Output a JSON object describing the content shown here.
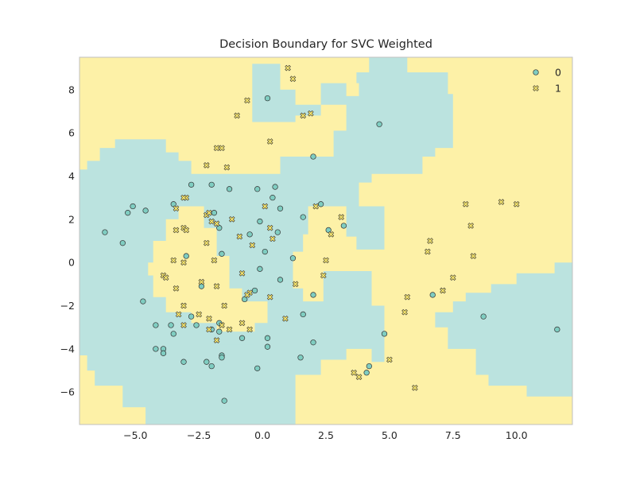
{
  "chart_data": {
    "type": "scatter",
    "title": "Decision Boundary for SVC Weighted",
    "xlabel": "",
    "ylabel": "",
    "xlim": [
      -7.2,
      12.2
    ],
    "ylim": [
      -7.5,
      9.5
    ],
    "x_ticks": [
      -5.0,
      -2.5,
      0.0,
      2.5,
      5.0,
      7.5,
      10.0
    ],
    "x_tick_labels": [
      "−5.0",
      "−2.5",
      "0.0",
      "2.5",
      "5.0",
      "7.5",
      "10.0"
    ],
    "y_ticks": [
      -6,
      -4,
      -2,
      0,
      2,
      4,
      6,
      8
    ],
    "y_tick_labels": [
      "−6",
      "−4",
      "−2",
      "0",
      "2",
      "4",
      "6",
      "8"
    ],
    "grid": false,
    "legend_position": "top-right",
    "colors": {
      "class0_region": "#bbe3df",
      "class1_region": "#fdf1a7",
      "class0_marker": "#7fcdc1",
      "class1_marker": "#f4e36a",
      "marker_edge": "#333333",
      "axes_edge": "#c0c0c0"
    },
    "series": [
      {
        "name": "0",
        "marker": "circle",
        "points": [
          [
            0.2,
            7.6
          ],
          [
            4.6,
            6.4
          ],
          [
            2.0,
            4.9
          ],
          [
            -2.8,
            3.6
          ],
          [
            -2.0,
            3.6
          ],
          [
            -1.3,
            3.4
          ],
          [
            -0.2,
            3.4
          ],
          [
            0.5,
            3.5
          ],
          [
            0.4,
            3.0
          ],
          [
            2.3,
            2.7
          ],
          [
            -3.5,
            2.7
          ],
          [
            -5.1,
            2.6
          ],
          [
            -4.6,
            2.4
          ],
          [
            -5.3,
            2.3
          ],
          [
            -1.9,
            2.3
          ],
          [
            0.7,
            2.5
          ],
          [
            1.6,
            2.1
          ],
          [
            -0.1,
            1.9
          ],
          [
            -6.2,
            1.4
          ],
          [
            -1.7,
            1.6
          ],
          [
            -0.5,
            1.3
          ],
          [
            0.6,
            1.4
          ],
          [
            2.6,
            1.5
          ],
          [
            3.2,
            1.7
          ],
          [
            -5.5,
            0.9
          ],
          [
            -1.6,
            0.4
          ],
          [
            0.1,
            0.5
          ],
          [
            -3.0,
            0.3
          ],
          [
            1.2,
            0.2
          ],
          [
            -0.1,
            -0.3
          ],
          [
            0.7,
            -0.8
          ],
          [
            -2.4,
            -1.1
          ],
          [
            -0.3,
            -1.3
          ],
          [
            -0.7,
            -1.7
          ],
          [
            -4.7,
            -1.8
          ],
          [
            2.0,
            -1.5
          ],
          [
            6.7,
            -1.5
          ],
          [
            1.6,
            -2.4
          ],
          [
            -2.8,
            -2.5
          ],
          [
            8.7,
            -2.5
          ],
          [
            -4.2,
            -2.9
          ],
          [
            -3.6,
            -2.9
          ],
          [
            -2.6,
            -2.9
          ],
          [
            -1.7,
            -2.8
          ],
          [
            -3.5,
            -3.3
          ],
          [
            -2.0,
            -3.1
          ],
          [
            -1.7,
            -3.2
          ],
          [
            11.6,
            -3.1
          ],
          [
            -0.8,
            -3.5
          ],
          [
            0.2,
            -3.5
          ],
          [
            4.8,
            -3.3
          ],
          [
            2.0,
            -3.7
          ],
          [
            -4.2,
            -4.0
          ],
          [
            -3.9,
            -4.0
          ],
          [
            -3.9,
            -4.2
          ],
          [
            0.2,
            -3.9
          ],
          [
            -1.6,
            -4.3
          ],
          [
            -1.6,
            -4.4
          ],
          [
            1.5,
            -4.4
          ],
          [
            -3.1,
            -4.6
          ],
          [
            -2.2,
            -4.6
          ],
          [
            -2.0,
            -4.8
          ],
          [
            4.2,
            -4.8
          ],
          [
            -0.2,
            -4.9
          ],
          [
            4.1,
            -5.1
          ],
          [
            -1.5,
            -6.4
          ]
        ]
      },
      {
        "name": "1",
        "marker": "x",
        "points": [
          [
            1.0,
            9.0
          ],
          [
            1.2,
            8.5
          ],
          [
            -0.6,
            7.5
          ],
          [
            -1.0,
            6.8
          ],
          [
            1.6,
            6.8
          ],
          [
            1.9,
            6.9
          ],
          [
            0.3,
            5.6
          ],
          [
            -1.6,
            5.3
          ],
          [
            -1.8,
            5.3
          ],
          [
            -2.2,
            4.5
          ],
          [
            -1.4,
            4.4
          ],
          [
            -3.0,
            3.0
          ],
          [
            -3.1,
            3.0
          ],
          [
            -3.4,
            2.5
          ],
          [
            0.1,
            2.6
          ],
          [
            2.1,
            2.6
          ],
          [
            -2.2,
            2.2
          ],
          [
            -2.1,
            2.3
          ],
          [
            -1.2,
            2.0
          ],
          [
            3.1,
            2.1
          ],
          [
            -2.0,
            1.9
          ],
          [
            -1.8,
            1.8
          ],
          [
            -3.1,
            1.6
          ],
          [
            -3.4,
            1.5
          ],
          [
            -3.0,
            1.5
          ],
          [
            0.3,
            1.6
          ],
          [
            -0.9,
            1.2
          ],
          [
            2.7,
            1.3
          ],
          [
            -2.2,
            0.9
          ],
          [
            -0.4,
            0.8
          ],
          [
            0.4,
            1.1
          ],
          [
            -3.5,
            0.1
          ],
          [
            -3.1,
            0.0
          ],
          [
            -1.9,
            0.1
          ],
          [
            2.5,
            0.1
          ],
          [
            -3.9,
            -0.6
          ],
          [
            -3.8,
            -0.7
          ],
          [
            -0.8,
            -0.5
          ],
          [
            2.4,
            -0.6
          ],
          [
            -3.4,
            -1.2
          ],
          [
            -2.4,
            -0.9
          ],
          [
            -1.8,
            -1.1
          ],
          [
            1.3,
            -1.0
          ],
          [
            -0.5,
            -1.4
          ],
          [
            -0.6,
            -1.5
          ],
          [
            0.3,
            -1.6
          ],
          [
            -3.1,
            -2.0
          ],
          [
            -1.5,
            -2.0
          ],
          [
            -3.3,
            -2.4
          ],
          [
            -2.5,
            -2.4
          ],
          [
            -2.1,
            -2.6
          ],
          [
            0.9,
            -2.6
          ],
          [
            -3.1,
            -2.9
          ],
          [
            -1.6,
            -2.9
          ],
          [
            -0.8,
            -2.8
          ],
          [
            -2.1,
            -3.1
          ],
          [
            -1.3,
            -3.1
          ],
          [
            -0.5,
            -3.1
          ],
          [
            -1.8,
            -3.6
          ],
          [
            8.0,
            2.7
          ],
          [
            9.4,
            2.8
          ],
          [
            10.0,
            2.7
          ],
          [
            8.2,
            1.7
          ],
          [
            6.6,
            1.0
          ],
          [
            6.5,
            0.5
          ],
          [
            8.3,
            0.3
          ],
          [
            7.5,
            -0.7
          ],
          [
            5.7,
            -1.6
          ],
          [
            7.1,
            -1.3
          ],
          [
            5.6,
            -2.3
          ],
          [
            5.0,
            -4.5
          ],
          [
            3.6,
            -5.1
          ],
          [
            3.8,
            -5.3
          ],
          [
            6.0,
            -5.8
          ]
        ]
      }
    ],
    "regions": {
      "note": "",
      "class0_polygons": [
        [
          [
            -0.4,
            9.2
          ],
          [
            0.7,
            9.2
          ],
          [
            0.7,
            8.0
          ],
          [
            1.3,
            8.0
          ],
          [
            1.3,
            7.3
          ],
          [
            2.3,
            7.3
          ],
          [
            2.3,
            8.3
          ],
          [
            3.7,
            8.3
          ],
          [
            3.7,
            8.8
          ],
          [
            4.2,
            8.8
          ],
          [
            4.2,
            9.5
          ],
          [
            5.7,
            9.5
          ],
          [
            5.7,
            8.8
          ],
          [
            7.3,
            8.8
          ],
          [
            7.3,
            7.8
          ],
          [
            7.5,
            7.8
          ],
          [
            7.5,
            5.3
          ],
          [
            6.8,
            5.3
          ],
          [
            6.8,
            4.9
          ],
          [
            6.3,
            4.9
          ],
          [
            6.3,
            4.1
          ],
          [
            4.3,
            4.1
          ],
          [
            4.3,
            3.7
          ],
          [
            3.8,
            3.7
          ],
          [
            3.8,
            2.6
          ],
          [
            4.8,
            2.6
          ],
          [
            4.8,
            0.6
          ],
          [
            4.3,
            0.6
          ],
          [
            4.3,
            0.6
          ],
          [
            3.7,
            0.6
          ],
          [
            3.7,
            1.2
          ],
          [
            3.3,
            1.2
          ],
          [
            3.3,
            2.6
          ],
          [
            1.8,
            2.6
          ],
          [
            1.8,
            1.3
          ],
          [
            1.6,
            1.3
          ],
          [
            1.6,
            0.5
          ],
          [
            1.2,
            0.5
          ],
          [
            1.2,
            -1.2
          ],
          [
            1.6,
            -1.2
          ],
          [
            1.6,
            -1.8
          ],
          [
            2.4,
            -1.8
          ],
          [
            2.4,
            -0.4
          ],
          [
            4.3,
            -0.4
          ],
          [
            4.3,
            -2.0
          ],
          [
            4.8,
            -2.0
          ],
          [
            4.8,
            -4.6
          ],
          [
            4.3,
            -4.6
          ],
          [
            4.3,
            -4.0
          ],
          [
            3.3,
            -4.0
          ],
          [
            3.3,
            -4.5
          ],
          [
            2.3,
            -4.5
          ],
          [
            2.3,
            -5.2
          ],
          [
            1.3,
            -5.2
          ],
          [
            1.3,
            -7.5
          ],
          [
            -4.6,
            -7.5
          ],
          [
            -4.6,
            -6.7
          ],
          [
            -5.5,
            -6.7
          ],
          [
            -5.5,
            -5.7
          ],
          [
            -6.6,
            -5.7
          ],
          [
            -6.6,
            -5.0
          ],
          [
            -6.9,
            -5.0
          ],
          [
            -6.9,
            -4.3
          ],
          [
            -7.2,
            -4.3
          ],
          [
            -7.2,
            4.3
          ],
          [
            -6.9,
            4.3
          ],
          [
            -6.9,
            4.7
          ],
          [
            -6.4,
            4.7
          ],
          [
            -6.4,
            5.3
          ],
          [
            -5.8,
            5.3
          ],
          [
            -5.8,
            5.7
          ],
          [
            -3.8,
            5.7
          ],
          [
            -3.8,
            5.1
          ],
          [
            -3.3,
            5.1
          ],
          [
            -3.3,
            4.7
          ],
          [
            -2.8,
            4.7
          ],
          [
            -2.8,
            4.1
          ],
          [
            0.7,
            4.1
          ],
          [
            0.7,
            4.9
          ],
          [
            2.8,
            4.9
          ],
          [
            2.8,
            6.1
          ],
          [
            3.3,
            6.1
          ],
          [
            3.3,
            7.7
          ],
          [
            3.8,
            7.7
          ],
          [
            3.8,
            8.3
          ],
          [
            3.3,
            8.3
          ],
          [
            3.3,
            7.3
          ],
          [
            2.3,
            7.3
          ],
          [
            2.3,
            6.8
          ],
          [
            1.3,
            6.8
          ],
          [
            1.3,
            6.5
          ],
          [
            -0.4,
            6.5
          ]
        ],
        [
          [
            -3.8,
            3.2
          ],
          [
            -2.8,
            3.2
          ],
          [
            -2.8,
            2.6
          ],
          [
            -1.8,
            2.6
          ],
          [
            -1.8,
            1.6
          ],
          [
            -1.3,
            1.6
          ],
          [
            -1.3,
            0.8
          ],
          [
            -0.8,
            0.8
          ],
          [
            -0.8,
            -0.9
          ],
          [
            0.2,
            -0.9
          ],
          [
            0.2,
            -2.3
          ],
          [
            1.2,
            -2.3
          ],
          [
            1.2,
            -3.0
          ],
          [
            0.7,
            -3.0
          ],
          [
            0.7,
            -3.5
          ],
          [
            -0.3,
            -3.5
          ],
          [
            -0.3,
            -3.8
          ],
          [
            -1.8,
            -3.8
          ],
          [
            -1.8,
            -3.5
          ],
          [
            -3.3,
            -3.5
          ],
          [
            -3.3,
            -3.2
          ],
          [
            -3.8,
            -3.2
          ],
          [
            -3.8,
            -2.6
          ],
          [
            -4.3,
            -2.6
          ],
          [
            -4.3,
            -2.1
          ],
          [
            -4.8,
            -2.1
          ],
          [
            -4.8,
            -0.5
          ],
          [
            -4.3,
            -0.5
          ],
          [
            -4.3,
            0.5
          ],
          [
            -3.8,
            0.5
          ]
        ],
        [
          [
            7.5,
            -1.8
          ],
          [
            8.0,
            -1.8
          ],
          [
            8.0,
            -1.4
          ],
          [
            9.0,
            -1.4
          ],
          [
            9.0,
            -1.0
          ],
          [
            10.0,
            -1.0
          ],
          [
            10.0,
            -0.5
          ],
          [
            11.5,
            -0.5
          ],
          [
            11.5,
            0.0
          ],
          [
            12.2,
            0.0
          ],
          [
            12.2,
            -6.2
          ],
          [
            10.4,
            -6.2
          ],
          [
            10.4,
            -5.7
          ],
          [
            8.9,
            -5.7
          ],
          [
            8.9,
            -5.2
          ],
          [
            8.4,
            -5.2
          ],
          [
            8.4,
            -4.0
          ],
          [
            7.3,
            -4.0
          ],
          [
            7.3,
            -3.0
          ],
          [
            6.8,
            -3.0
          ],
          [
            6.8,
            -2.3
          ],
          [
            7.5,
            -2.3
          ]
        ]
      ],
      "class1_inner_polygons": [
        [
          [
            -3.3,
            2.6
          ],
          [
            -2.3,
            2.6
          ],
          [
            -2.3,
            1.6
          ],
          [
            -1.8,
            1.6
          ],
          [
            -1.8,
            0.3
          ],
          [
            -1.3,
            0.3
          ],
          [
            -1.3,
            -1.2
          ],
          [
            -0.8,
            -1.2
          ],
          [
            -0.8,
            -1.8
          ],
          [
            0.2,
            -1.8
          ],
          [
            0.2,
            -2.8
          ],
          [
            -0.3,
            -2.8
          ],
          [
            -0.3,
            -3.2
          ],
          [
            -1.8,
            -3.2
          ],
          [
            -1.8,
            -2.8
          ],
          [
            -2.8,
            -2.8
          ],
          [
            -2.8,
            -2.3
          ],
          [
            -3.8,
            -2.3
          ],
          [
            -3.8,
            -1.6
          ],
          [
            -4.3,
            -1.6
          ],
          [
            -4.3,
            -0.6
          ],
          [
            -4.5,
            -0.6
          ],
          [
            -4.5,
            0.0
          ],
          [
            -4.3,
            0.0
          ],
          [
            -4.3,
            1.0
          ],
          [
            -3.8,
            1.0
          ],
          [
            -3.8,
            2.0
          ],
          [
            -3.3,
            2.0
          ]
        ]
      ]
    }
  }
}
